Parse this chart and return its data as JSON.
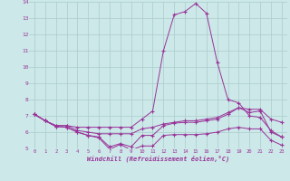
{
  "xlabel": "Windchill (Refroidissement éolien,°C)",
  "background_color": "#cce8e8",
  "grid_color": "#aacccc",
  "line_color": "#993399",
  "hours": [
    0,
    1,
    2,
    3,
    4,
    5,
    6,
    7,
    8,
    9,
    10,
    11,
    12,
    13,
    14,
    15,
    16,
    17,
    18,
    19,
    20,
    21,
    22,
    23
  ],
  "series1": [
    7.1,
    6.7,
    6.4,
    6.4,
    6.3,
    6.3,
    6.3,
    6.3,
    6.3,
    6.3,
    6.8,
    7.3,
    11.0,
    13.2,
    13.4,
    13.9,
    13.3,
    10.3,
    8.0,
    7.8,
    7.0,
    6.9,
    6.1,
    5.7
  ],
  "series2": [
    7.1,
    6.7,
    6.4,
    6.4,
    6.1,
    6.0,
    5.9,
    5.9,
    5.9,
    5.9,
    6.2,
    6.3,
    6.5,
    6.6,
    6.7,
    6.7,
    6.8,
    6.9,
    7.2,
    7.5,
    7.4,
    7.4,
    6.8,
    6.6
  ],
  "series3": [
    7.1,
    6.7,
    6.35,
    6.3,
    6.0,
    5.8,
    5.7,
    5.1,
    5.3,
    5.1,
    5.8,
    5.8,
    6.4,
    6.55,
    6.6,
    6.6,
    6.7,
    6.8,
    7.1,
    7.5,
    7.2,
    7.3,
    6.0,
    5.7
  ],
  "series4": [
    7.1,
    6.7,
    6.35,
    6.3,
    6.0,
    5.8,
    5.65,
    4.95,
    5.25,
    4.9,
    5.15,
    5.15,
    5.8,
    5.85,
    5.85,
    5.85,
    5.9,
    6.0,
    6.2,
    6.3,
    6.2,
    6.2,
    5.5,
    5.2
  ],
  "ylim": [
    5,
    14
  ],
  "yticks": [
    5,
    6,
    7,
    8,
    9,
    10,
    11,
    12,
    13,
    14
  ],
  "xticks": [
    0,
    1,
    2,
    3,
    4,
    5,
    6,
    7,
    8,
    9,
    10,
    11,
    12,
    13,
    14,
    15,
    16,
    17,
    18,
    19,
    20,
    21,
    22,
    23
  ]
}
